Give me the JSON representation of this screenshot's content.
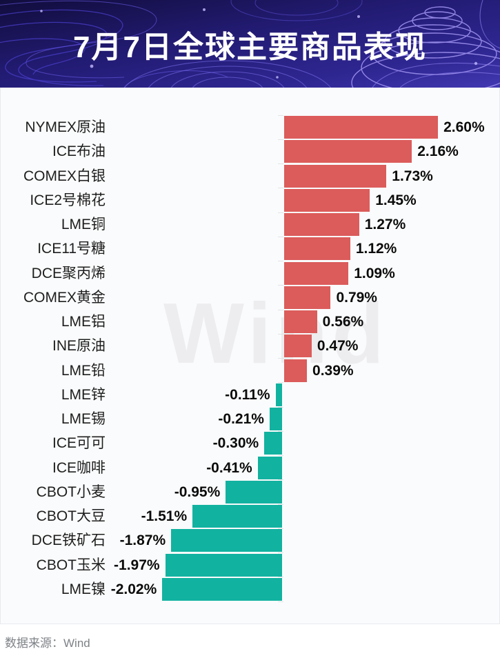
{
  "header": {
    "title": "7月7日全球主要商品表现"
  },
  "watermark": "Wind",
  "footer": {
    "source_label": "数据来源：Wind"
  },
  "colors": {
    "positive_bar": "#DB5C5B",
    "negative_bar": "#12B2A0",
    "header_base": "#221B72",
    "header_contour": "#9D90EE",
    "card_bg": "#FAFBFC",
    "watermark_text": "#EDEDEF",
    "footer_text": "#7E8287"
  },
  "chart_data": {
    "type": "bar",
    "orientation": "horizontal",
    "title": "7月7日全球主要商品表现",
    "xlabel": "",
    "ylabel": "",
    "value_unit": "%",
    "xlim": [
      -2.02,
      2.6
    ],
    "grid": false,
    "legend": false,
    "source": "Wind",
    "categories": [
      "NYMEX原油",
      "ICE布油",
      "COMEX白银",
      "ICE2号棉花",
      "LME铜",
      "ICE11号糖",
      "DCE聚丙烯",
      "COMEX黄金",
      "LME铝",
      "INE原油",
      "LME铅",
      "LME锌",
      "LME锡",
      "ICE可可",
      "ICE咖啡",
      "CBOT小麦",
      "CBOT大豆",
      "DCE铁矿石",
      "CBOT玉米",
      "LME镍"
    ],
    "values": [
      2.6,
      2.16,
      1.73,
      1.45,
      1.27,
      1.12,
      1.09,
      0.79,
      0.56,
      0.47,
      0.39,
      -0.11,
      -0.21,
      -0.3,
      -0.41,
      -0.95,
      -1.51,
      -1.87,
      -1.97,
      -2.02
    ],
    "labels": [
      "2.60%",
      "2.16%",
      "1.73%",
      "1.45%",
      "1.27%",
      "1.12%",
      "1.09%",
      "0.79%",
      "0.56%",
      "0.47%",
      "0.39%",
      "-0.11%",
      "-0.21%",
      "-0.30%",
      "-0.41%",
      "-0.95%",
      "-1.51%",
      "-1.87%",
      "-1.97%",
      "-2.02%"
    ]
  }
}
